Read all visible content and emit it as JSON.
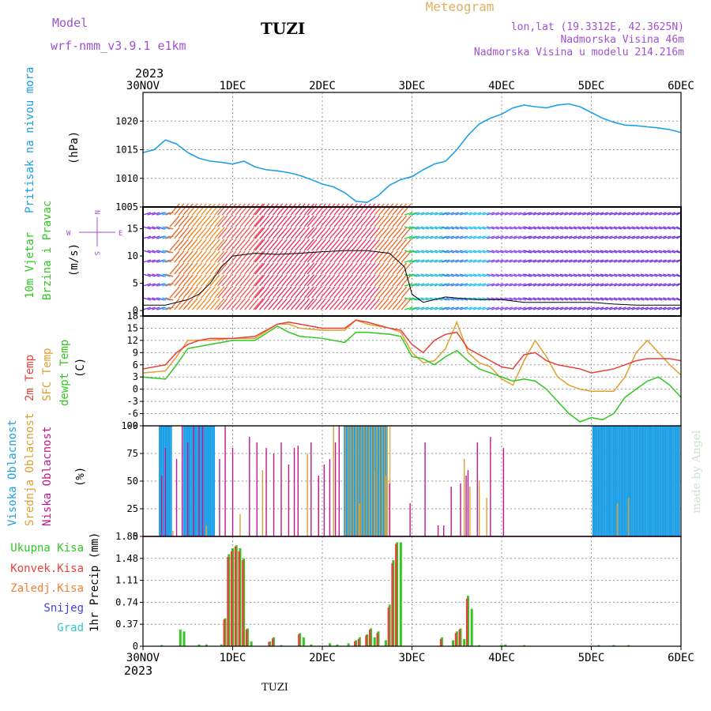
{
  "header": {
    "model_label": "Model",
    "model_name": "wrf-nmm_v3.9.1 e1km",
    "station": "TUZI",
    "title": "Meteogram",
    "coords": "lon,lat (19.3312E, 42.3625N)",
    "altitude": "Nadmorska Visina 46m",
    "model_altitude": "Nadmorska Visina u modelu 214.216m",
    "footer_station": "TUZI",
    "watermark": "made by Angel",
    "year": "2023"
  },
  "colors": {
    "pressure": "#1ea0e6",
    "temp2m": "#e8403a",
    "sfc": "#e0a030",
    "dewpt": "#30c820",
    "high_cloud": "#1ea0e6",
    "mid_cloud": "#e0a030",
    "low_cloud": "#c0188c",
    "total_precip": "#30c820",
    "conv_precip": "#e8403a",
    "frozen": "#f08030",
    "snow": "#4040e0",
    "hail": "#30c8c8",
    "purple": "#a050d0"
  },
  "x_axis": {
    "ticks": [
      "30NOV",
      "1DEC",
      "2DEC",
      "3DEC",
      "4DEC",
      "5DEC",
      "6DEC"
    ],
    "domain": [
      0,
      144
    ]
  },
  "panels": {
    "pressure": {
      "label": "Pritisak na nivou mora",
      "unit": "(hPa)"
    },
    "wind": {
      "label1": "10m Vjetar",
      "label2": "Brzina i Pravac",
      "unit": "(m/s)",
      "compass": {
        "n": "N",
        "s": "S",
        "e": "E",
        "w": "W"
      }
    },
    "temp": {
      "label1": "2m Temp",
      "label2": "SFC Temp",
      "label3": "dewpt Temp",
      "unit": "(C)"
    },
    "cloud": {
      "label1": "Visoka Oblacnost",
      "label2": "Srednja Oblacnost",
      "label3": "Niska Oblacnost",
      "unit": "(%)"
    },
    "precip": {
      "label": "1hr Precip (mm)",
      "legend": [
        "Ukupna Kisa",
        "Konvek.Kisa",
        "Zaledj.Kisa",
        "Snijeg",
        "Grad"
      ]
    }
  },
  "chart_data": [
    {
      "type": "line",
      "ylabel": "(hPa)",
      "ylim": [
        1005,
        1025
      ],
      "yticks": [
        1005,
        1010,
        1015,
        1020
      ],
      "x": [
        0,
        3,
        6,
        9,
        12,
        15,
        18,
        21,
        24,
        27,
        30,
        33,
        36,
        39,
        42,
        45,
        48,
        51,
        54,
        57,
        60,
        63,
        66,
        69,
        72,
        75,
        78,
        81,
        84,
        87,
        90,
        93,
        96,
        99,
        102,
        105,
        108,
        111,
        114,
        117,
        120,
        123,
        126,
        129,
        132,
        135,
        138,
        141,
        144
      ],
      "series": [
        {
          "values": [
            1014.5,
            1015,
            1016.7,
            1016,
            1014.5,
            1013.5,
            1013,
            1012.8,
            1012.5,
            1013,
            1012,
            1011.5,
            1011.3,
            1011,
            1010.5,
            1009.8,
            1009,
            1008.5,
            1007.5,
            1006,
            1005.8,
            1007,
            1008.8,
            1009.8,
            1010.3,
            1011.5,
            1012.5,
            1013,
            1015,
            1017.5,
            1019.5,
            1020.5,
            1021.2,
            1022.3,
            1022.8,
            1022.5,
            1022.3,
            1022.8,
            1023,
            1022.5,
            1021.5,
            1020.5,
            1019.8,
            1019.3,
            1019.2,
            1019,
            1018.8,
            1018.5,
            1018
          ]
        }
      ]
    },
    {
      "type": "line",
      "ylabel": "(m/s)",
      "ylim": [
        -1,
        19
      ],
      "yticks": [
        0,
        5,
        10,
        15
      ],
      "x": [
        0,
        6,
        12,
        15,
        18,
        21,
        24,
        30,
        36,
        42,
        48,
        54,
        60,
        66,
        70,
        72,
        75,
        78,
        81,
        84,
        90,
        96,
        102,
        108,
        114,
        120,
        126,
        132,
        138,
        144
      ],
      "series": [
        {
          "values": [
            1,
            1,
            2,
            3,
            5,
            8,
            10,
            10.5,
            10.3,
            10.5,
            10.8,
            11,
            11,
            10.5,
            8,
            3,
            1.5,
            2,
            2.5,
            2.3,
            2,
            2,
            1.5,
            1.5,
            1.5,
            1.5,
            1.2,
            1,
            1,
            1
          ]
        }
      ]
    },
    {
      "type": "line",
      "ylabel": "(C)",
      "ylim": [
        -9,
        18
      ],
      "yticks": [
        -9,
        -6,
        -3,
        0,
        3,
        6,
        9,
        12,
        15,
        18
      ],
      "x": [
        0,
        6,
        9,
        12,
        15,
        18,
        24,
        30,
        36,
        39,
        42,
        48,
        54,
        57,
        60,
        66,
        69,
        72,
        75,
        78,
        81,
        84,
        87,
        90,
        93,
        96,
        99,
        102,
        105,
        108,
        111,
        114,
        117,
        120,
        123,
        126,
        129,
        132,
        135,
        138,
        141,
        144
      ],
      "series": [
        {
          "name": "2m Temp",
          "values": [
            5,
            6,
            9,
            11,
            12,
            12.5,
            12.5,
            13,
            16,
            16.5,
            16,
            15,
            15,
            17,
            16.5,
            15,
            14.5,
            11,
            9,
            12,
            13.5,
            14,
            10,
            8.5,
            7,
            5.5,
            5,
            8.5,
            9,
            7,
            6,
            5.5,
            5,
            4,
            4.5,
            5,
            6,
            7,
            7.5,
            7.5,
            7.5,
            7
          ]
        },
        {
          "name": "SFC Temp",
          "values": [
            4,
            4.5,
            8,
            12,
            12,
            12,
            12.5,
            12.5,
            16,
            16,
            15,
            14.5,
            14.5,
            17,
            16,
            15,
            14,
            9,
            6.5,
            7,
            10,
            16.5,
            9,
            6.5,
            5.5,
            2.5,
            1,
            7,
            12,
            8,
            3,
            1,
            0,
            -0.5,
            -0.5,
            -0.5,
            3,
            9,
            12,
            9,
            6,
            3.5
          ]
        },
        {
          "name": "dewpt Temp",
          "values": [
            3,
            2.5,
            6,
            10,
            10.5,
            11,
            12,
            12,
            15.5,
            14,
            13,
            12.5,
            11.5,
            14,
            14,
            13.5,
            13,
            8,
            7.5,
            6,
            8,
            9.5,
            7,
            5,
            4,
            3,
            2,
            2.5,
            2,
            0,
            -3,
            -6,
            -8,
            -7,
            -7.5,
            -6,
            -2,
            0,
            2,
            3,
            1,
            -2
          ]
        }
      ]
    },
    {
      "type": "bar",
      "ylabel": "(%)",
      "ylim": [
        0,
        100
      ],
      "yticks": [
        0,
        25,
        50,
        75,
        100
      ],
      "high_blocks": [
        [
          4.5,
          7.5
        ],
        [
          11,
          19
        ],
        [
          54,
          65
        ],
        [
          120.5,
          143.5
        ]
      ],
      "mid_blocks": [
        [
          54,
          66
        ]
      ],
      "low_bars": [
        [
          5,
          55
        ],
        [
          6,
          80
        ],
        [
          9,
          70
        ],
        [
          10.5,
          100
        ],
        [
          12,
          85
        ],
        [
          13.5,
          100
        ],
        [
          15,
          100
        ],
        [
          16,
          100
        ],
        [
          20.5,
          70
        ],
        [
          22,
          100
        ],
        [
          24,
          80
        ],
        [
          28.5,
          90
        ],
        [
          30.5,
          85
        ],
        [
          33,
          80
        ],
        [
          35,
          75
        ],
        [
          37,
          85
        ],
        [
          39,
          65
        ],
        [
          40.5,
          80
        ],
        [
          41.5,
          82
        ],
        [
          45,
          85
        ],
        [
          47,
          55
        ],
        [
          48.5,
          65
        ],
        [
          50,
          70
        ],
        [
          51.5,
          85
        ],
        [
          52.5,
          100
        ],
        [
          66,
          48
        ],
        [
          71.5,
          30
        ],
        [
          75.5,
          85
        ],
        [
          79,
          10
        ],
        [
          80.5,
          10
        ],
        [
          82.5,
          45
        ],
        [
          85,
          48
        ],
        [
          86.5,
          55
        ],
        [
          87,
          60
        ],
        [
          89.5,
          85
        ],
        [
          93,
          90
        ],
        [
          96.5,
          80
        ]
      ],
      "mid_bars": [
        [
          8,
          5
        ],
        [
          17,
          10
        ],
        [
          26,
          20
        ],
        [
          32,
          60
        ],
        [
          44,
          75
        ],
        [
          47,
          45
        ],
        [
          51,
          100
        ],
        [
          58,
          30
        ],
        [
          62,
          60
        ],
        [
          65,
          55
        ],
        [
          86,
          70
        ],
        [
          87.5,
          45
        ],
        [
          90,
          50
        ],
        [
          92,
          35
        ],
        [
          127,
          30
        ],
        [
          130,
          35
        ]
      ]
    },
    {
      "type": "bar",
      "ylabel": "1hr Precip (mm)",
      "ylim": [
        0,
        1.85
      ],
      "yticks": [
        0,
        0.37,
        0.74,
        1.11,
        1.48,
        1.85
      ],
      "total": [
        [
          5,
          0.02
        ],
        [
          10,
          0.28
        ],
        [
          11,
          0.25
        ],
        [
          15,
          0.03
        ],
        [
          17,
          0.03
        ],
        [
          21,
          0.03
        ],
        [
          22,
          0.47
        ],
        [
          23,
          1.55
        ],
        [
          24,
          1.65
        ],
        [
          25,
          1.7
        ],
        [
          26,
          1.65
        ],
        [
          27,
          1.48
        ],
        [
          28,
          0.3
        ],
        [
          29,
          0.08
        ],
        [
          34,
          0.08
        ],
        [
          35,
          0.15
        ],
        [
          37,
          0.02
        ],
        [
          42,
          0.22
        ],
        [
          43,
          0.15
        ],
        [
          45,
          0.03
        ],
        [
          50,
          0.05
        ],
        [
          52,
          0.03
        ],
        [
          55,
          0.05
        ],
        [
          57,
          0.1
        ],
        [
          58,
          0.15
        ],
        [
          60,
          0.2
        ],
        [
          61,
          0.3
        ],
        [
          62,
          0.15
        ],
        [
          63,
          0.25
        ],
        [
          65,
          0.1
        ],
        [
          66,
          0.7
        ],
        [
          67,
          1.45
        ],
        [
          68,
          1.75
        ],
        [
          69,
          1.75
        ],
        [
          80,
          0.15
        ],
        [
          83,
          0.1
        ],
        [
          84,
          0.25
        ],
        [
          85,
          0.3
        ],
        [
          86,
          0.12
        ],
        [
          87,
          0.85
        ],
        [
          88,
          0.63
        ],
        [
          90,
          0.02
        ],
        [
          96,
          0.02
        ],
        [
          97,
          0.03
        ],
        [
          102,
          0.02
        ],
        [
          122,
          0.02
        ],
        [
          126,
          0.02
        ],
        [
          130,
          0.02
        ]
      ],
      "convective": [
        [
          22,
          0.45
        ],
        [
          23,
          1.5
        ],
        [
          24,
          1.6
        ],
        [
          25,
          1.68
        ],
        [
          26,
          1.6
        ],
        [
          27,
          1.45
        ],
        [
          28,
          0.28
        ],
        [
          34,
          0.07
        ],
        [
          35,
          0.13
        ],
        [
          42,
          0.2
        ],
        [
          57,
          0.08
        ],
        [
          58,
          0.12
        ],
        [
          60,
          0.18
        ],
        [
          61,
          0.28
        ],
        [
          63,
          0.22
        ],
        [
          66,
          0.65
        ],
        [
          67,
          1.4
        ],
        [
          68,
          1.72
        ],
        [
          80,
          0.12
        ],
        [
          84,
          0.22
        ],
        [
          85,
          0.28
        ],
        [
          87,
          0.8
        ]
      ]
    }
  ]
}
